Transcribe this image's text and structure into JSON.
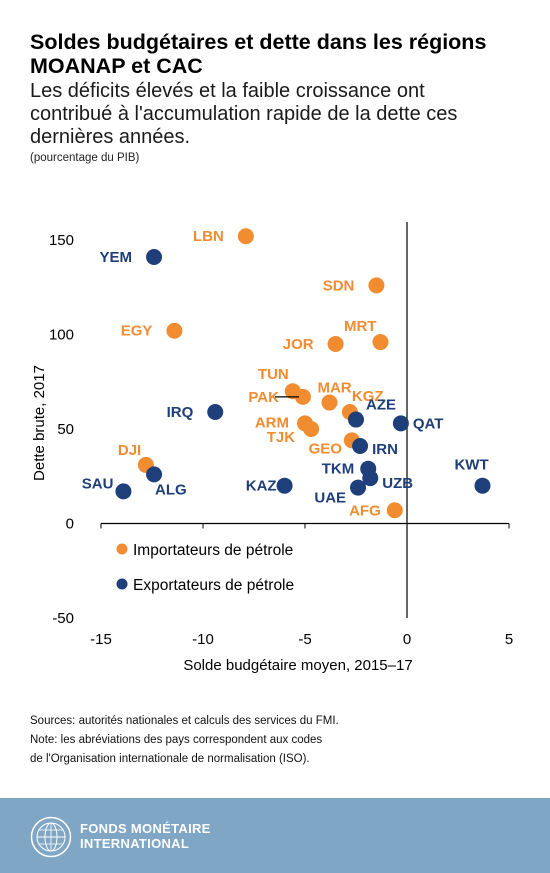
{
  "title_line1": "Soldes budgétaires et dette dans les régions",
  "title_line2": "MOANAP et CAC",
  "subtitle_line1": "Les déficits élevés et la faible croissance ont",
  "subtitle_line2": "contribué à l'accumulation rapide de la dette ces",
  "subtitle_line3": "dernières années.",
  "unit": "(pourcentage du PIB)",
  "colors": {
    "importers": "#f28c30",
    "exporters": "#1e3f7a"
  },
  "chart_data": {
    "type": "scatter",
    "xlabel": "Solde budgétaire moyen, 2015–17",
    "ylabel": "Dette brute, 2017",
    "xlim": [
      -15,
      5
    ],
    "ylim": [
      -50,
      160
    ],
    "x_ticks": [
      "-15",
      "-10",
      "-5",
      "0",
      "5"
    ],
    "y_ticks": [
      "-50",
      "0",
      "50",
      "100",
      "150"
    ],
    "grid": false,
    "legend_position": "bottom-left",
    "series": [
      {
        "name": "Importateurs de pétrole",
        "points": [
          {
            "label": "LBN",
            "x": -7.9,
            "y": 152
          },
          {
            "label": "EGY",
            "x": -11.4,
            "y": 102
          },
          {
            "label": "SDN",
            "x": -1.5,
            "y": 126
          },
          {
            "label": "MRT",
            "x": -1.3,
            "y": 96
          },
          {
            "label": "JOR",
            "x": -3.5,
            "y": 95
          },
          {
            "label": "TUN",
            "x": -5.6,
            "y": 70
          },
          {
            "label": "PAK",
            "x": -5.1,
            "y": 67
          },
          {
            "label": "MAR",
            "x": -3.8,
            "y": 64
          },
          {
            "label": "KGZ",
            "x": -2.8,
            "y": 59
          },
          {
            "label": "ARM",
            "x": -5.0,
            "y": 53
          },
          {
            "label": "TJK",
            "x": -4.7,
            "y": 50
          },
          {
            "label": "GEO",
            "x": -2.7,
            "y": 44
          },
          {
            "label": "DJI",
            "x": -12.8,
            "y": 31
          },
          {
            "label": "AFG",
            "x": -0.6,
            "y": 7
          }
        ]
      },
      {
        "name": "Exportateurs de pétrole",
        "points": [
          {
            "label": "YEM",
            "x": -12.4,
            "y": 141
          },
          {
            "label": "IRQ",
            "x": -9.4,
            "y": 59
          },
          {
            "label": "AZE",
            "x": -2.5,
            "y": 55
          },
          {
            "label": "QAT",
            "x": -0.3,
            "y": 53
          },
          {
            "label": "IRN",
            "x": -2.3,
            "y": 41
          },
          {
            "label": "TKM",
            "x": -1.9,
            "y": 29
          },
          {
            "label": "UZB",
            "x": -1.8,
            "y": 24
          },
          {
            "label": "UAE",
            "x": -2.4,
            "y": 19
          },
          {
            "label": "KAZ",
            "x": -6.0,
            "y": 20
          },
          {
            "label": "SAU",
            "x": -13.9,
            "y": 17
          },
          {
            "label": "ALG",
            "x": -12.4,
            "y": 26
          },
          {
            "label": "KWT",
            "x": 3.7,
            "y": 20
          }
        ]
      }
    ]
  },
  "notes": {
    "line1": "Sources: autorités nationales et calculs des services du FMI.",
    "line2": "Note: les abréviations des pays correspondent aux codes",
    "line3": "de l'Organisation internationale de normalisation (ISO)."
  },
  "footer": {
    "org_line1": "FONDS MONÉTAIRE",
    "org_line2": "INTERNATIONAL"
  }
}
